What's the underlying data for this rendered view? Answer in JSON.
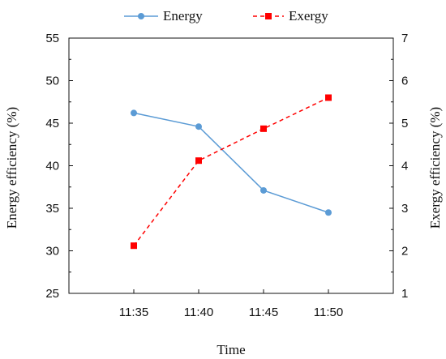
{
  "chart_data": {
    "type": "line",
    "categories": [
      "11:35",
      "11:40",
      "11:45",
      "11:50"
    ],
    "xlabel": "Time",
    "ylabel_left": "Energy efficiency (%)",
    "ylabel_right": "Exergy efficiency (%)",
    "ylim_left": [
      25,
      55
    ],
    "yticks_left": [
      25,
      30,
      35,
      40,
      45,
      50,
      55
    ],
    "ylim_right": [
      1,
      7
    ],
    "yticks_right": [
      1,
      2,
      3,
      4,
      5,
      6,
      7
    ],
    "grid": false,
    "legend_position": "top",
    "series": [
      {
        "name": "Energy",
        "axis": "left",
        "values": [
          46.2,
          44.6,
          37.1,
          34.5
        ],
        "color": "#5b9bd5",
        "marker": "circle",
        "line_style": "solid"
      },
      {
        "name": "Exergy",
        "axis": "right",
        "values": [
          2.12,
          4.12,
          4.87,
          5.6
        ],
        "color": "#ff0000",
        "marker": "square",
        "line_style": "dashed"
      }
    ]
  }
}
